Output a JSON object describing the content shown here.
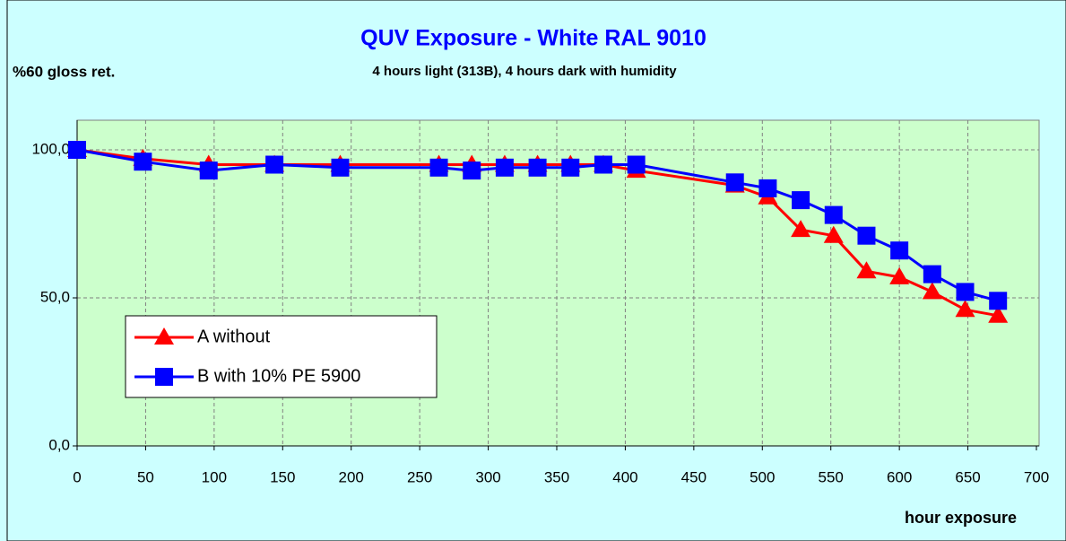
{
  "chart_data": {
    "type": "line",
    "title": "QUV Exposure - White RAL 9010",
    "subtitle": "4 hours light (313B), 4 hours dark with humidity",
    "y_label": "%60 gloss ret.",
    "x_label": "hour exposure",
    "x": [
      0,
      48,
      96,
      144,
      192,
      264,
      288,
      312,
      336,
      360,
      384,
      408,
      480,
      504,
      528,
      552,
      576,
      600,
      624,
      648,
      672
    ],
    "series": [
      {
        "name": "A without",
        "color": "#ff0000",
        "marker": "triangle",
        "values": [
          100,
          97,
          95,
          95,
          95,
          95,
          95,
          95,
          95,
          95,
          95,
          93,
          88,
          84,
          73,
          71,
          59,
          57,
          52,
          46,
          44
        ]
      },
      {
        "name": "B with 10% PE 5900",
        "color": "#0000ff",
        "marker": "square",
        "values": [
          100,
          96,
          93,
          95,
          94,
          94,
          93,
          94,
          94,
          94,
          95,
          95,
          89,
          87,
          83,
          78,
          71,
          66,
          58,
          52,
          49
        ]
      }
    ],
    "xlim": [
      0,
      700
    ],
    "xticks": [
      0,
      50,
      100,
      150,
      200,
      250,
      300,
      350,
      400,
      450,
      500,
      550,
      600,
      650,
      700
    ],
    "ylim": [
      0,
      110
    ],
    "yticks": [
      {
        "value": 0,
        "label": "0,0"
      },
      {
        "value": 50,
        "label": "50,0"
      },
      {
        "value": 100,
        "label": "100,0"
      }
    ],
    "grid": true,
    "legend": "lower left"
  }
}
